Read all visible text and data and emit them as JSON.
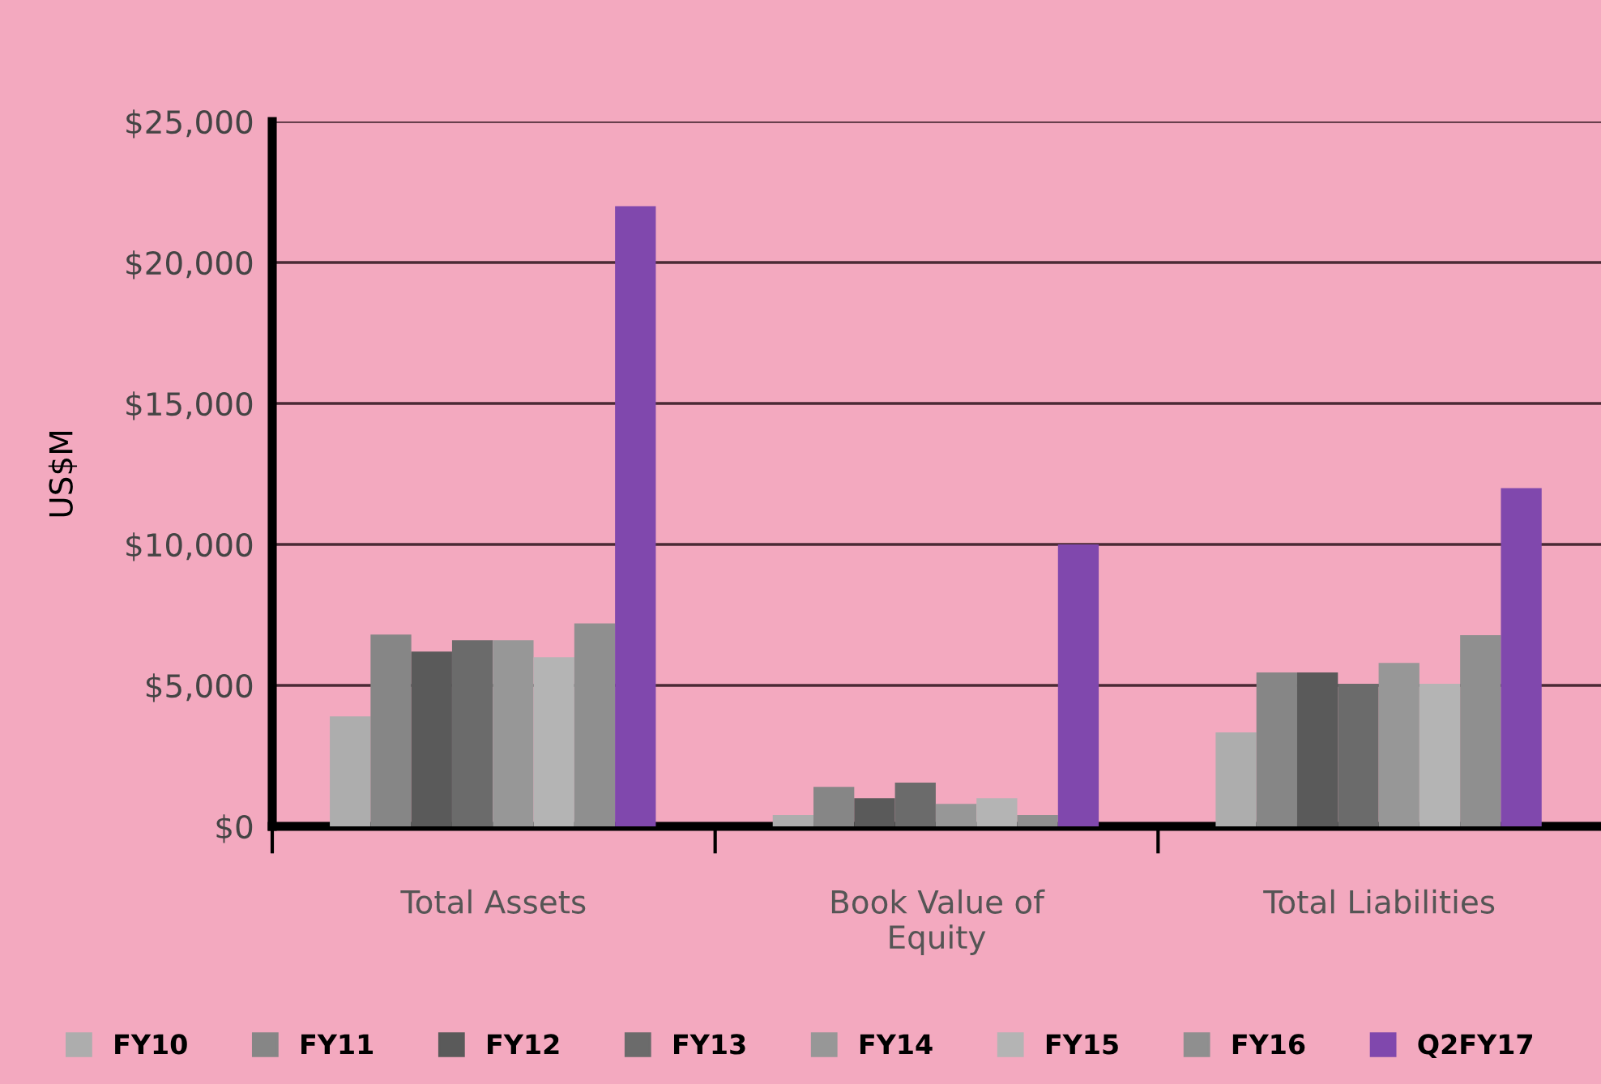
{
  "chart_data": {
    "type": "bar",
    "ylabel": "US$M",
    "categories": [
      "Total Assets",
      "Book Value of\nEquity",
      "Total Liabilities"
    ],
    "series": [
      {
        "name": "FY10",
        "color": "#adadad",
        "values": [
          3900,
          400,
          3330
        ]
      },
      {
        "name": "FY11",
        "color": "#868686",
        "values": [
          6800,
          1400,
          5460
        ]
      },
      {
        "name": "FY12",
        "color": "#5a5a5a",
        "values": [
          6200,
          1000,
          5460
        ]
      },
      {
        "name": "FY13",
        "color": "#6b6b6b",
        "values": [
          6600,
          1550,
          5060
        ]
      },
      {
        "name": "FY14",
        "color": "#979797",
        "values": [
          6600,
          800,
          5800
        ]
      },
      {
        "name": "FY15",
        "color": "#b4b4b4",
        "values": [
          6000,
          1000,
          5060
        ]
      },
      {
        "name": "FY16",
        "color": "#8f8f8f",
        "values": [
          7200,
          400,
          6780
        ]
      },
      {
        "name": "Q2FY17",
        "color": "#8048ad",
        "values": [
          22000,
          10000,
          12000
        ]
      }
    ],
    "ylim": [
      0,
      25000
    ],
    "yticks": [
      {
        "value": 0,
        "label": "$0"
      },
      {
        "value": 5000,
        "label": "$5,000"
      },
      {
        "value": 10000,
        "label": "$10,000"
      },
      {
        "value": 15000,
        "label": "$15,000"
      },
      {
        "value": 20000,
        "label": "$20,000"
      },
      {
        "value": 25000,
        "label": "$25,000"
      }
    ],
    "grid": "y",
    "legend": "bottom"
  }
}
